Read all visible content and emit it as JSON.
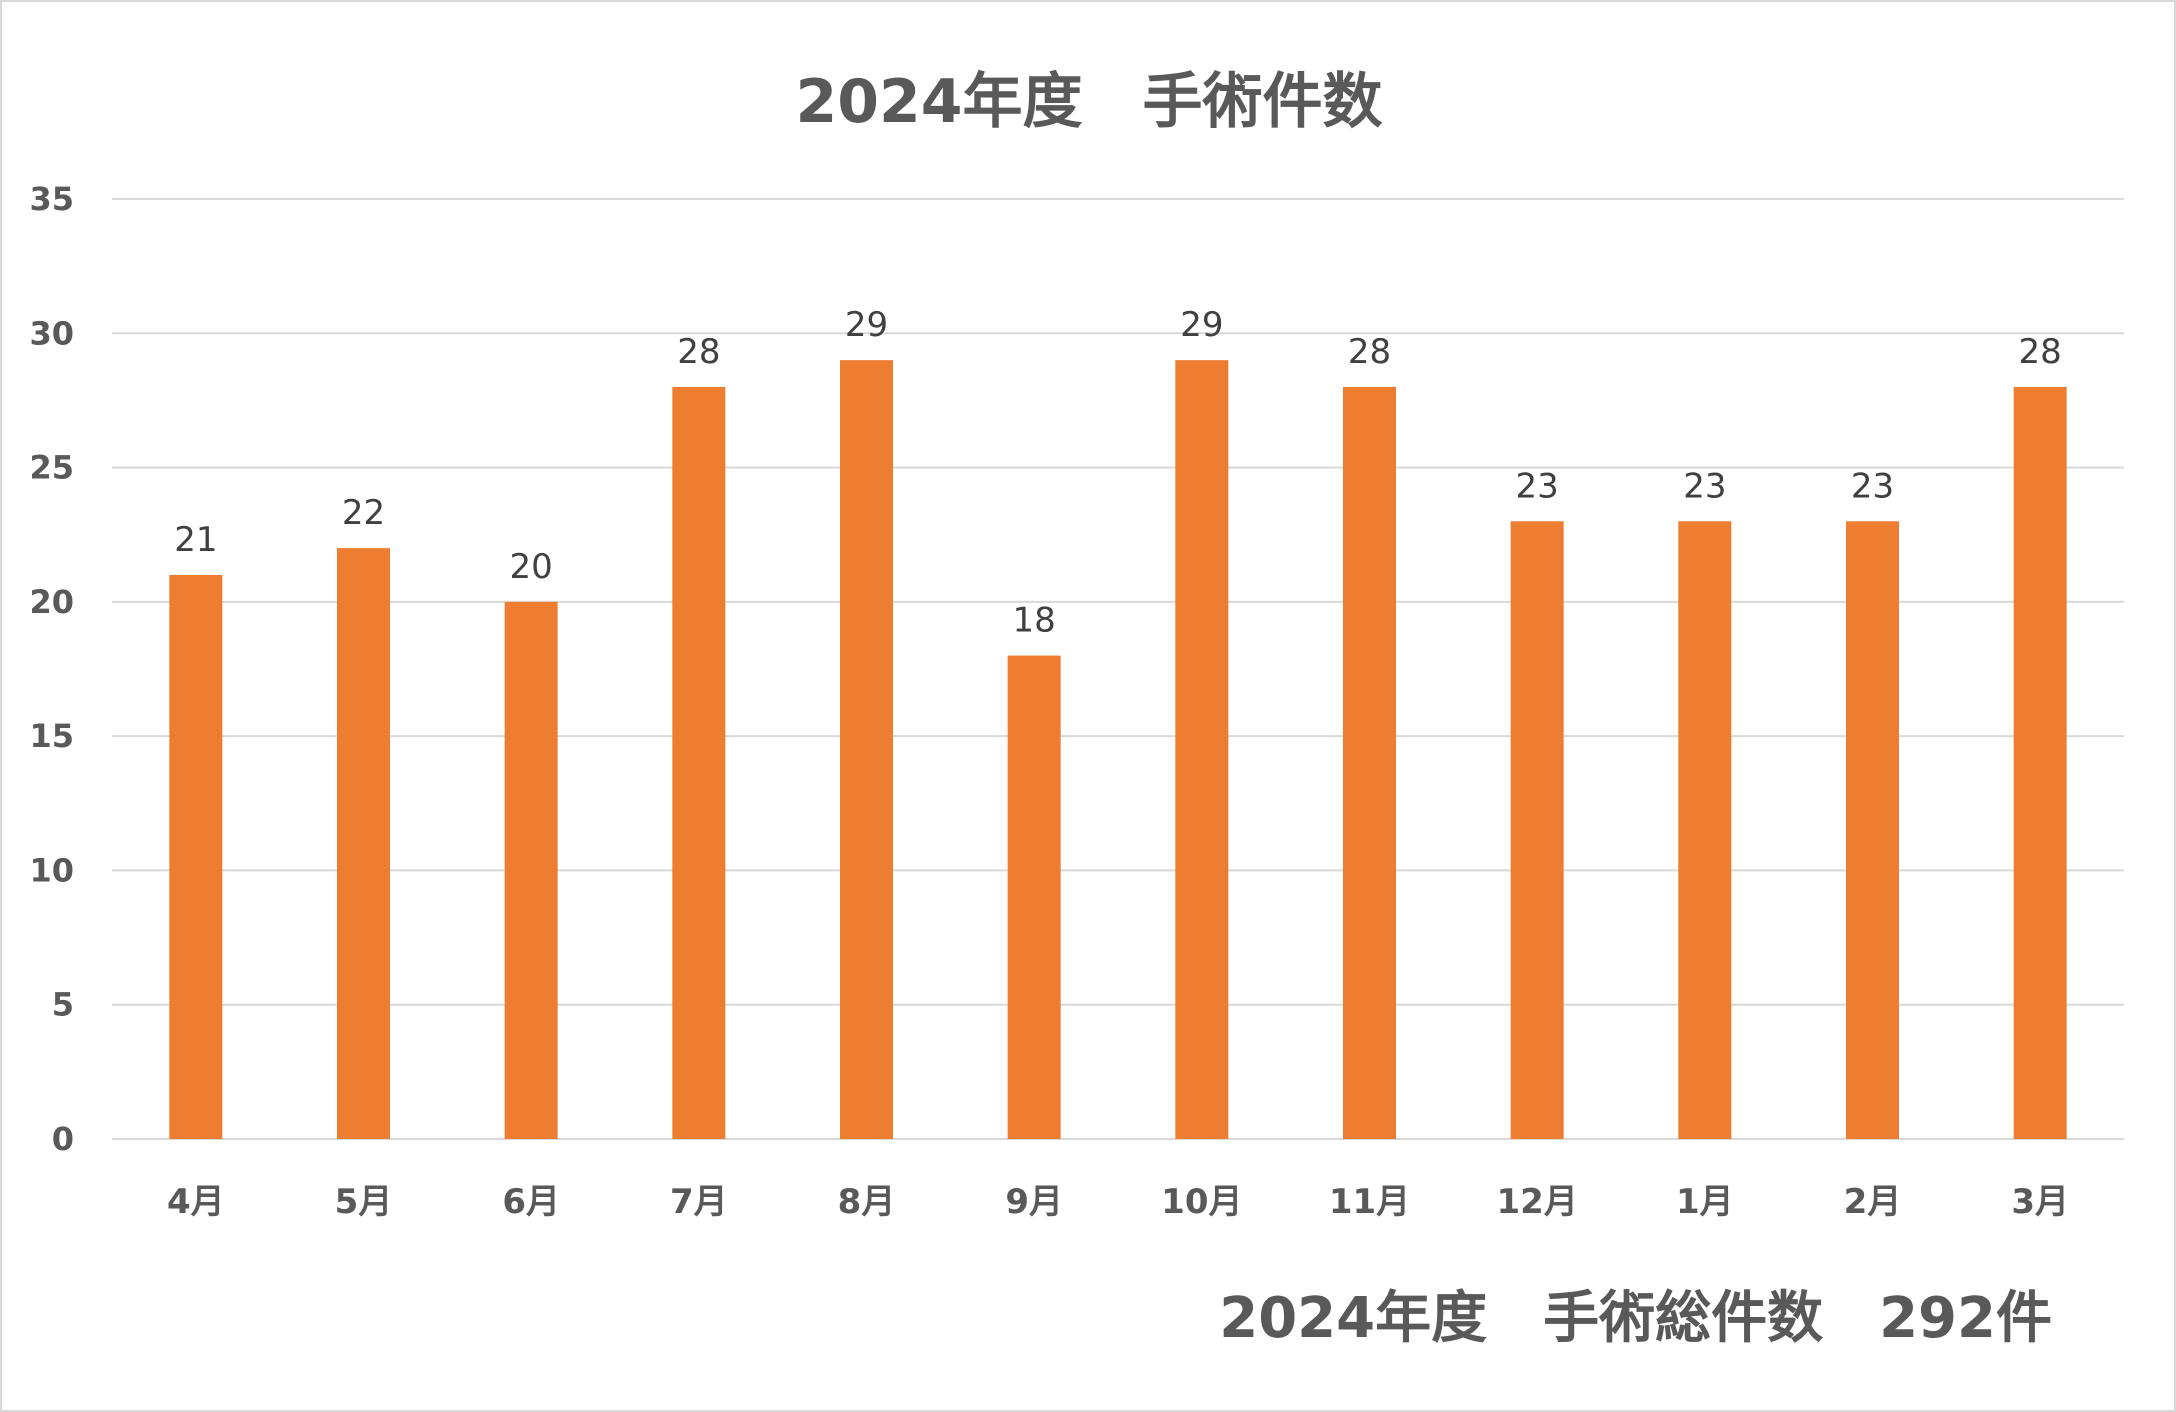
{
  "chart_data": {
    "type": "bar",
    "title": "2024年度　手術件数",
    "categories": [
      "4月",
      "5月",
      "6月",
      "7月",
      "8月",
      "9月",
      "10月",
      "11月",
      "12月",
      "1月",
      "2月",
      "3月"
    ],
    "values": [
      21,
      22,
      20,
      28,
      29,
      18,
      29,
      28,
      23,
      23,
      23,
      28
    ],
    "ylim": [
      0,
      35
    ],
    "yticks": [
      "0",
      "5",
      "10",
      "15",
      "20",
      "25",
      "30",
      "35"
    ],
    "grid": true,
    "data_labels": true,
    "bar_color": "#ED7D31",
    "footer_text": "2024年度　手術総件数　292件"
  }
}
